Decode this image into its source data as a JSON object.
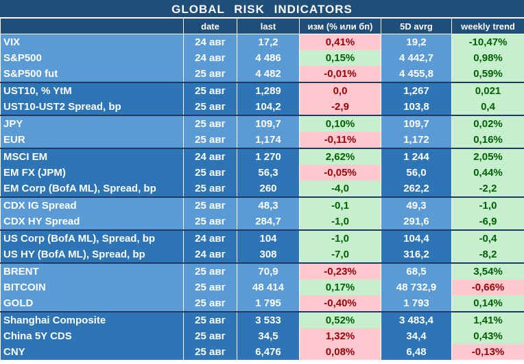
{
  "title": "GLOBAL   RISK   INDICATORS",
  "headers": [
    "",
    "date",
    "last",
    "изм (% или бп)",
    "5D avrg",
    "weekly trend"
  ],
  "colors": {
    "header_bg": "#1f4e79",
    "row_light": "#5b9bd5",
    "row_dark": "#2e75b6",
    "pos_bg": "#c6efce",
    "pos_fg": "#006100",
    "neg_bg": "#ffc7ce",
    "neg_fg": "#9c0006"
  },
  "rows": [
    {
      "name": "VIX",
      "date": "24 авг",
      "last": "17,2",
      "chg": "0,41%",
      "chg_s": "neg",
      "avg": "19,2",
      "trend": "-10,47%",
      "trend_s": "pos",
      "shade": "light",
      "gstart": false
    },
    {
      "name": "S&P500",
      "date": "24 авг",
      "last": "4 486",
      "chg": "0,15%",
      "chg_s": "pos",
      "avg": "4 442,7",
      "trend": "0,98%",
      "trend_s": "pos",
      "shade": "light",
      "gstart": false
    },
    {
      "name": "S&P500 fut",
      "date": "25 авг",
      "last": "4 482",
      "chg": "-0,01%",
      "chg_s": "neg",
      "avg": "4 455,8",
      "trend": "0,59%",
      "trend_s": "pos",
      "shade": "light",
      "gstart": false
    },
    {
      "name": "UST10, % YtM",
      "date": "25 авг",
      "last": "1,289",
      "chg": "0,0",
      "chg_s": "neg",
      "avg": "1,267",
      "trend": "0,021",
      "trend_s": "pos",
      "shade": "dark",
      "gstart": true
    },
    {
      "name": "UST10-UST2 Spread, bp",
      "date": "25 авг",
      "last": "104,2",
      "chg": "-2,9",
      "chg_s": "neg",
      "avg": "103,8",
      "trend": "0,4",
      "trend_s": "pos",
      "shade": "dark",
      "gstart": false
    },
    {
      "name": "JPY",
      "date": "25 авг",
      "last": "109,7",
      "chg": "0,10%",
      "chg_s": "pos",
      "avg": "109,7",
      "trend": "0,02%",
      "trend_s": "pos",
      "shade": "light",
      "gstart": true
    },
    {
      "name": "EUR",
      "date": "25 авг",
      "last": "1,174",
      "chg": "-0,11%",
      "chg_s": "neg",
      "avg": "1,172",
      "trend": "0,16%",
      "trend_s": "pos",
      "shade": "light",
      "gstart": false
    },
    {
      "name": "MSCI EM",
      "date": "24 авг",
      "last": "1 270",
      "chg": "2,62%",
      "chg_s": "pos",
      "avg": "1 244",
      "trend": "2,05%",
      "trend_s": "pos",
      "shade": "dark",
      "gstart": true
    },
    {
      "name": "EM FX (JPM)",
      "date": "25 авг",
      "last": "56,3",
      "chg": "-0,05%",
      "chg_s": "neg",
      "avg": "56,0",
      "trend": "0,44%",
      "trend_s": "pos",
      "shade": "dark",
      "gstart": false
    },
    {
      "name": "EM Corp (BofA ML), Spread, bp",
      "date": "25 авг",
      "last": "260",
      "chg": "-4,0",
      "chg_s": "pos",
      "avg": "262,2",
      "trend": "-2,2",
      "trend_s": "pos",
      "shade": "dark",
      "gstart": false
    },
    {
      "name": "CDX IG Spread",
      "date": "25 авг",
      "last": "48,3",
      "chg": "-0,1",
      "chg_s": "pos",
      "avg": "49,3",
      "trend": "-1,0",
      "trend_s": "pos",
      "shade": "light",
      "gstart": true
    },
    {
      "name": "CDX HY Spread",
      "date": "25 авг",
      "last": "284,7",
      "chg": "-1,0",
      "chg_s": "pos",
      "avg": "291,6",
      "trend": "-6,9",
      "trend_s": "pos",
      "shade": "light",
      "gstart": false
    },
    {
      "name": "US Corp (BofA ML), Spread, bp",
      "date": "24 авг",
      "last": "104",
      "chg": "-1,0",
      "chg_s": "pos",
      "avg": "104,4",
      "trend": "-0,4",
      "trend_s": "pos",
      "shade": "dark",
      "gstart": true
    },
    {
      "name": "US HY (BofA ML), Spread, bp",
      "date": "24 авг",
      "last": "308",
      "chg": "-7,0",
      "chg_s": "pos",
      "avg": "316,2",
      "trend": "-8,2",
      "trend_s": "pos",
      "shade": "dark",
      "gstart": false
    },
    {
      "name": "BRENT",
      "date": "25 авг",
      "last": "70,9",
      "chg": "-0,23%",
      "chg_s": "neg",
      "avg": "68,5",
      "trend": "3,54%",
      "trend_s": "pos",
      "shade": "light",
      "gstart": true
    },
    {
      "name": "BITCOIN",
      "date": "25 авг",
      "last": "48 414",
      "chg": "0,17%",
      "chg_s": "pos",
      "avg": "48 732,9",
      "trend": "-0,66%",
      "trend_s": "neg",
      "shade": "light",
      "gstart": false
    },
    {
      "name": "GOLD",
      "date": "25 авг",
      "last": "1 795",
      "chg": "-0,40%",
      "chg_s": "neg",
      "avg": "1 793",
      "trend": "0,14%",
      "trend_s": "pos",
      "shade": "light",
      "gstart": false
    },
    {
      "name": "Shanghai Composite",
      "date": "25 авг",
      "last": "3 533",
      "chg": "0,52%",
      "chg_s": "pos",
      "avg": "3 483,4",
      "trend": "1,41%",
      "trend_s": "pos",
      "shade": "dark",
      "gstart": true
    },
    {
      "name": "China 5Y CDS",
      "date": "25 авг",
      "last": "34,5",
      "chg": "1,32%",
      "chg_s": "neg",
      "avg": "34,4",
      "trend": "0,43%",
      "trend_s": "pos",
      "shade": "dark",
      "gstart": false
    },
    {
      "name": "CNY",
      "date": "25 авг",
      "last": "6,476",
      "chg": "0,08%",
      "chg_s": "neg",
      "avg": "6,48",
      "trend": "-0,13%",
      "trend_s": "neg",
      "shade": "dark",
      "gstart": false
    }
  ]
}
